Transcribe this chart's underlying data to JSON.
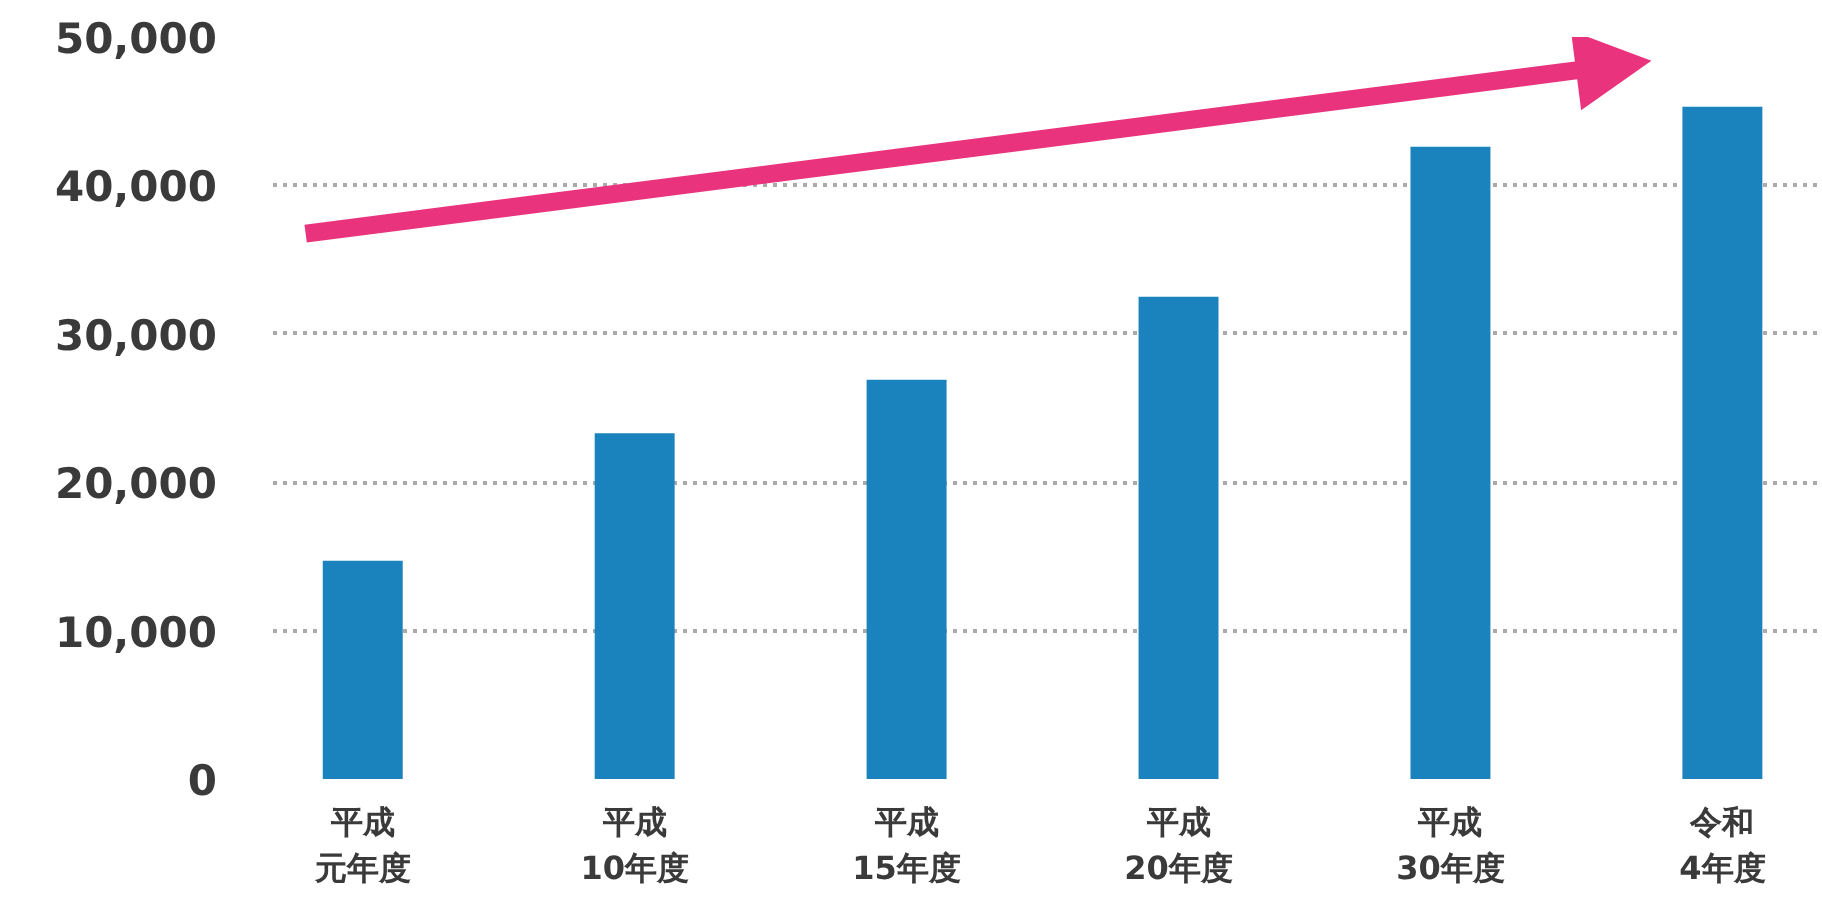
{
  "chart_data": {
    "type": "bar",
    "categories": [
      "平成元年度",
      "平成10年度",
      "平成15年度",
      "平成20年度",
      "平成30年度",
      "令和4年度"
    ],
    "values": [
      14700,
      23300,
      26900,
      32500,
      42600,
      45300
    ],
    "color": "#1a82bd",
    "ylim": [
      0,
      50000
    ],
    "yticks": [
      {
        "value": 0,
        "label": "0"
      },
      {
        "value": 10000,
        "label": "10,000"
      },
      {
        "value": 20000,
        "label": "20,000"
      },
      {
        "value": 30000,
        "label": "30,000"
      },
      {
        "value": 40000,
        "label": "40,000"
      },
      {
        "value": 50000,
        "label": "50,000"
      }
    ],
    "grid": "y"
  }
}
